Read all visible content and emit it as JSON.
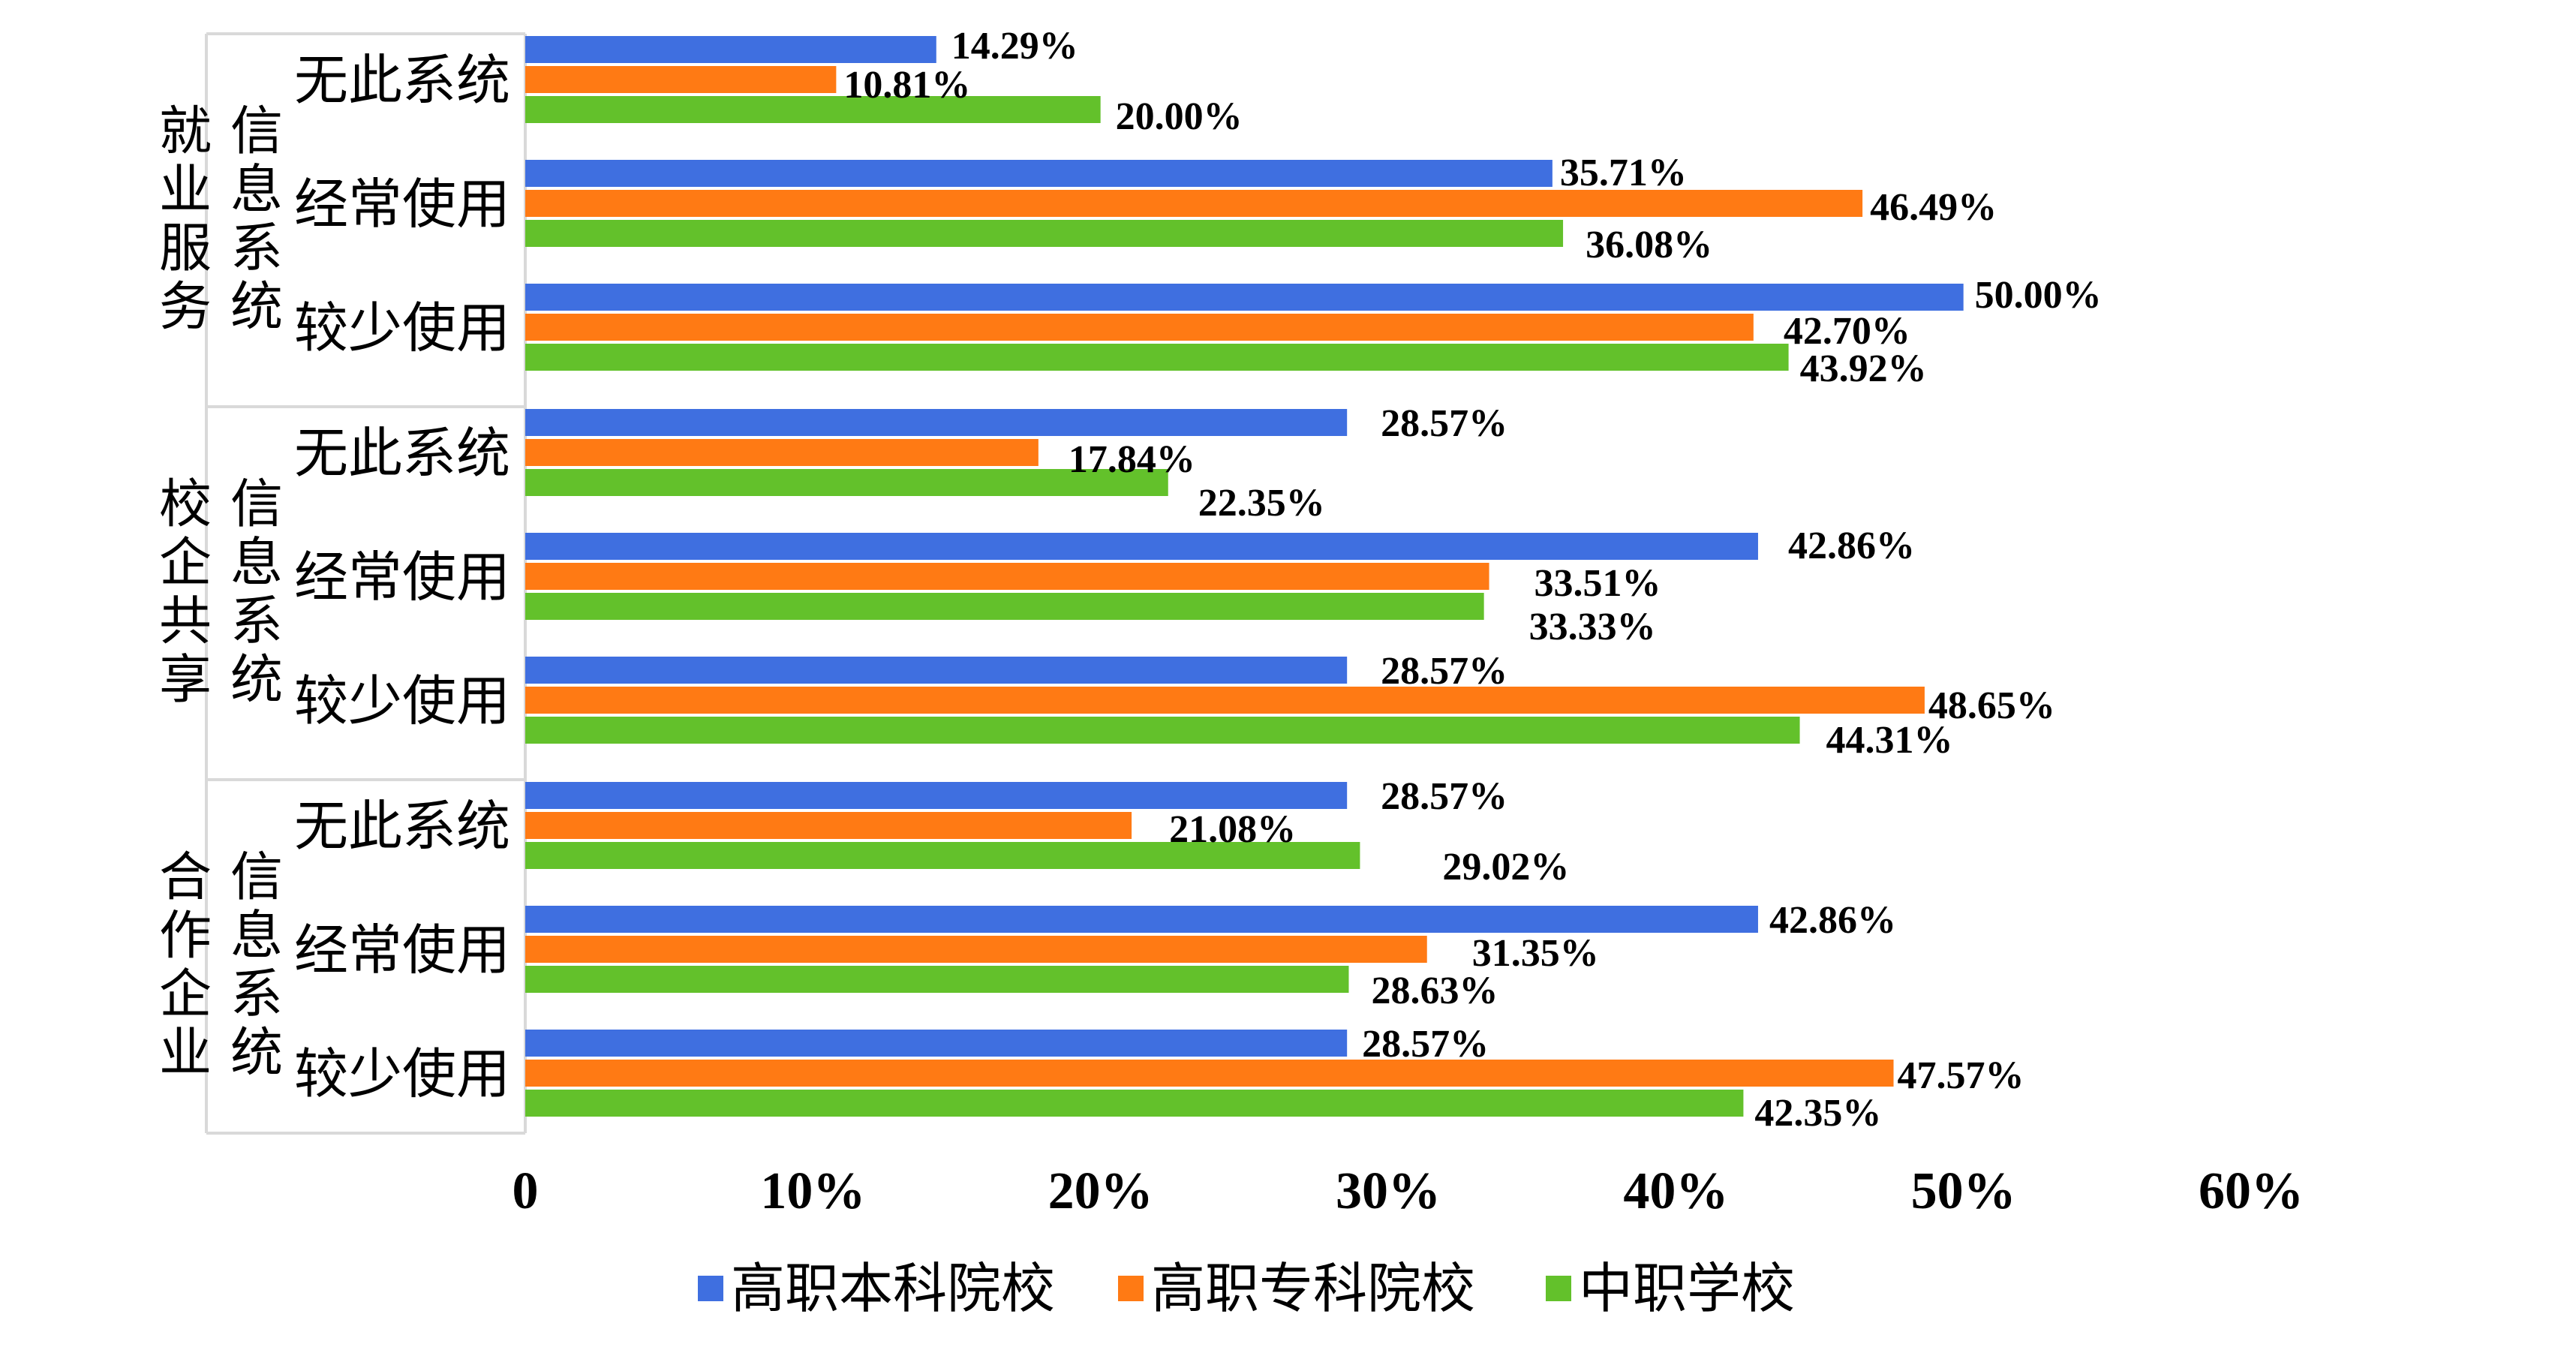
{
  "chart_data": {
    "type": "bar",
    "orientation": "horizontal",
    "groups": [
      {
        "label_lines": [
          "就业服务",
          "信息系统"
        ],
        "categories": [
          "无此系统",
          "经常使用",
          "较少使用"
        ]
      },
      {
        "label_lines": [
          "校企共享",
          "信息系统"
        ],
        "categories": [
          "无此系统",
          "经常使用",
          "较少使用"
        ]
      },
      {
        "label_lines": [
          "合作企业",
          "信息系统"
        ],
        "categories": [
          "无此系统",
          "经常使用",
          "较少使用"
        ]
      }
    ],
    "series": [
      {
        "name": "高职本科院校",
        "color": "#3f6fe0",
        "values": [
          14.29,
          35.71,
          50.0,
          28.57,
          42.86,
          28.57,
          28.57,
          42.86,
          28.57
        ],
        "labels": [
          "14.29%",
          "35.71%",
          "50.00%",
          "28.57%",
          "42.86%",
          "28.57%",
          "28.57%",
          "42.86%",
          "28.57%"
        ]
      },
      {
        "name": "高职专科院校",
        "color": "#ff7a14",
        "values": [
          10.81,
          46.49,
          42.7,
          17.84,
          33.51,
          48.65,
          21.08,
          31.35,
          47.57
        ],
        "labels": [
          "10.81%",
          "46.49%",
          "42.70%",
          "17.84%",
          "33.51%",
          "48.65%",
          "21.08%",
          "31.35%",
          "47.57%"
        ]
      },
      {
        "name": "中职学校",
        "color": "#63c12b",
        "values": [
          20.0,
          36.08,
          43.92,
          22.35,
          33.33,
          44.31,
          29.02,
          28.63,
          42.35
        ],
        "labels": [
          "20.00%",
          "36.08%",
          "43.92%",
          "22.35%",
          "33.33%",
          "44.31%",
          "29.02%",
          "28.63%",
          "42.35%"
        ]
      }
    ],
    "xlim": [
      0,
      60
    ],
    "xticks": [
      "0",
      "10%",
      "20%",
      "30%",
      "40%",
      "50%",
      "60%"
    ],
    "grid": false,
    "legend_position": "bottom"
  }
}
